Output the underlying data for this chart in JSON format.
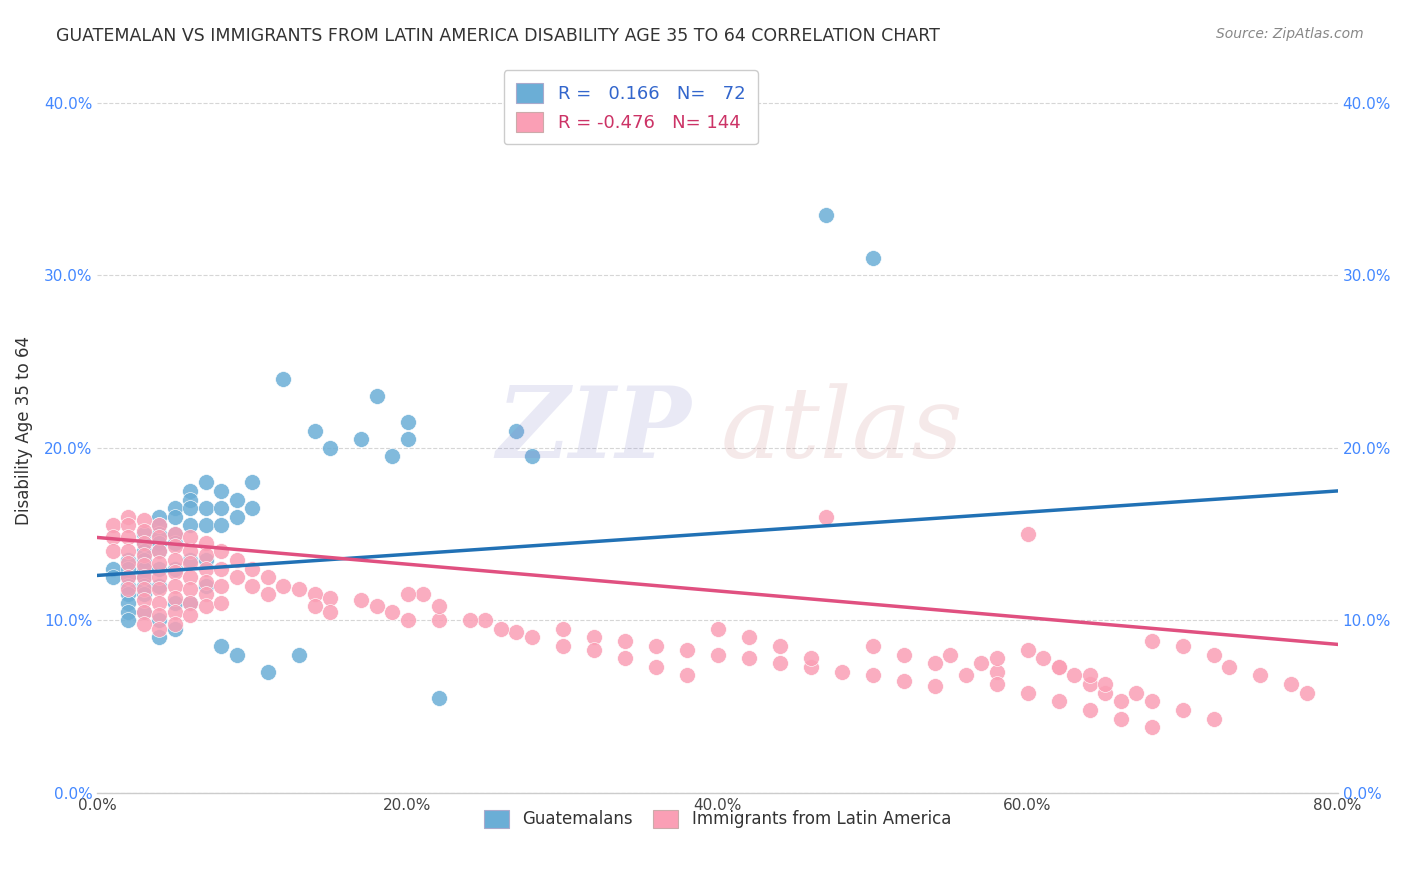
{
  "title": "GUATEMALAN VS IMMIGRANTS FROM LATIN AMERICA DISABILITY AGE 35 TO 64 CORRELATION CHART",
  "source": "Source: ZipAtlas.com",
  "ylabel": "Disability Age 35 to 64",
  "blue_R": 0.166,
  "blue_N": 72,
  "pink_R": -0.476,
  "pink_N": 144,
  "blue_color": "#6baed6",
  "pink_color": "#fa9fb5",
  "blue_line_color": "#2171b5",
  "pink_line_color": "#e05080",
  "xmin": 0.0,
  "xmax": 0.8,
  "ymin": 0.0,
  "ymax": 0.42,
  "yticks": [
    0.0,
    0.1,
    0.2,
    0.3,
    0.4
  ],
  "xticks": [
    0.0,
    0.2,
    0.4,
    0.6,
    0.8
  ],
  "legend_labels": [
    "Guatemalans",
    "Immigrants from Latin America"
  ],
  "blue_scatter_x": [
    0.01,
    0.01,
    0.02,
    0.02,
    0.02,
    0.02,
    0.02,
    0.02,
    0.02,
    0.02,
    0.03,
    0.03,
    0.03,
    0.03,
    0.03,
    0.03,
    0.03,
    0.03,
    0.03,
    0.04,
    0.04,
    0.04,
    0.04,
    0.04,
    0.04,
    0.04,
    0.04,
    0.04,
    0.05,
    0.05,
    0.05,
    0.05,
    0.05,
    0.05,
    0.05,
    0.06,
    0.06,
    0.06,
    0.06,
    0.06,
    0.06,
    0.07,
    0.07,
    0.07,
    0.07,
    0.07,
    0.08,
    0.08,
    0.08,
    0.08,
    0.09,
    0.09,
    0.09,
    0.1,
    0.1,
    0.11,
    0.12,
    0.13,
    0.14,
    0.15,
    0.17,
    0.18,
    0.19,
    0.2,
    0.2,
    0.22,
    0.27,
    0.28,
    0.47,
    0.5
  ],
  "blue_scatter_y": [
    0.13,
    0.125,
    0.135,
    0.13,
    0.125,
    0.12,
    0.115,
    0.11,
    0.105,
    0.1,
    0.15,
    0.145,
    0.14,
    0.135,
    0.13,
    0.125,
    0.12,
    0.115,
    0.105,
    0.16,
    0.155,
    0.15,
    0.145,
    0.14,
    0.13,
    0.12,
    0.1,
    0.09,
    0.165,
    0.16,
    0.15,
    0.145,
    0.13,
    0.11,
    0.095,
    0.175,
    0.17,
    0.165,
    0.155,
    0.135,
    0.11,
    0.18,
    0.165,
    0.155,
    0.135,
    0.12,
    0.175,
    0.165,
    0.155,
    0.085,
    0.17,
    0.16,
    0.08,
    0.18,
    0.165,
    0.07,
    0.24,
    0.08,
    0.21,
    0.2,
    0.205,
    0.23,
    0.195,
    0.215,
    0.205,
    0.055,
    0.21,
    0.195,
    0.335,
    0.31
  ],
  "pink_scatter_x": [
    0.01,
    0.01,
    0.01,
    0.02,
    0.02,
    0.02,
    0.02,
    0.02,
    0.02,
    0.02,
    0.03,
    0.03,
    0.03,
    0.03,
    0.03,
    0.03,
    0.03,
    0.03,
    0.03,
    0.03,
    0.04,
    0.04,
    0.04,
    0.04,
    0.04,
    0.04,
    0.04,
    0.04,
    0.04,
    0.05,
    0.05,
    0.05,
    0.05,
    0.05,
    0.05,
    0.05,
    0.05,
    0.06,
    0.06,
    0.06,
    0.06,
    0.06,
    0.06,
    0.06,
    0.07,
    0.07,
    0.07,
    0.07,
    0.07,
    0.07,
    0.08,
    0.08,
    0.08,
    0.08,
    0.09,
    0.09,
    0.1,
    0.1,
    0.11,
    0.11,
    0.12,
    0.13,
    0.14,
    0.14,
    0.15,
    0.15,
    0.17,
    0.18,
    0.19,
    0.2,
    0.21,
    0.22,
    0.25,
    0.27,
    0.3,
    0.32,
    0.34,
    0.36,
    0.38,
    0.4,
    0.42,
    0.44,
    0.46,
    0.48,
    0.5,
    0.52,
    0.54,
    0.55,
    0.57,
    0.58,
    0.6,
    0.61,
    0.62,
    0.63,
    0.64,
    0.65,
    0.66,
    0.68,
    0.7,
    0.72,
    0.73,
    0.75,
    0.77,
    0.78,
    0.4,
    0.42,
    0.44,
    0.46,
    0.5,
    0.52,
    0.54,
    0.56,
    0.58,
    0.6,
    0.62,
    0.64,
    0.66,
    0.68,
    0.58,
    0.62,
    0.64,
    0.65,
    0.67,
    0.68,
    0.7,
    0.72,
    0.2,
    0.22,
    0.24,
    0.26,
    0.28,
    0.3,
    0.32,
    0.34,
    0.36,
    0.38,
    0.47,
    0.6
  ],
  "pink_scatter_y": [
    0.155,
    0.148,
    0.14,
    0.16,
    0.155,
    0.148,
    0.14,
    0.133,
    0.125,
    0.118,
    0.158,
    0.152,
    0.145,
    0.138,
    0.132,
    0.125,
    0.118,
    0.112,
    0.105,
    0.098,
    0.155,
    0.148,
    0.14,
    0.133,
    0.125,
    0.118,
    0.11,
    0.103,
    0.095,
    0.15,
    0.143,
    0.135,
    0.128,
    0.12,
    0.113,
    0.105,
    0.098,
    0.148,
    0.14,
    0.133,
    0.125,
    0.118,
    0.11,
    0.103,
    0.145,
    0.138,
    0.13,
    0.122,
    0.115,
    0.108,
    0.14,
    0.13,
    0.12,
    0.11,
    0.135,
    0.125,
    0.13,
    0.12,
    0.125,
    0.115,
    0.12,
    0.118,
    0.115,
    0.108,
    0.113,
    0.105,
    0.112,
    0.108,
    0.105,
    0.1,
    0.115,
    0.1,
    0.1,
    0.093,
    0.095,
    0.09,
    0.088,
    0.085,
    0.083,
    0.08,
    0.078,
    0.075,
    0.073,
    0.07,
    0.068,
    0.065,
    0.062,
    0.08,
    0.075,
    0.07,
    0.083,
    0.078,
    0.073,
    0.068,
    0.063,
    0.058,
    0.053,
    0.088,
    0.085,
    0.08,
    0.073,
    0.068,
    0.063,
    0.058,
    0.095,
    0.09,
    0.085,
    0.078,
    0.085,
    0.08,
    0.075,
    0.068,
    0.063,
    0.058,
    0.053,
    0.048,
    0.043,
    0.038,
    0.078,
    0.073,
    0.068,
    0.063,
    0.058,
    0.053,
    0.048,
    0.043,
    0.115,
    0.108,
    0.1,
    0.095,
    0.09,
    0.085,
    0.083,
    0.078,
    0.073,
    0.068,
    0.16,
    0.15
  ],
  "blue_trend_x": [
    0.0,
    0.8
  ],
  "blue_trend_y_start": 0.126,
  "blue_trend_y_end": 0.175,
  "pink_trend_x": [
    0.0,
    0.8
  ],
  "pink_trend_y_start": 0.148,
  "pink_trend_y_end": 0.086,
  "background_color": "#ffffff",
  "grid_color": "#cccccc",
  "title_color": "#333333",
  "source_color": "#888888"
}
